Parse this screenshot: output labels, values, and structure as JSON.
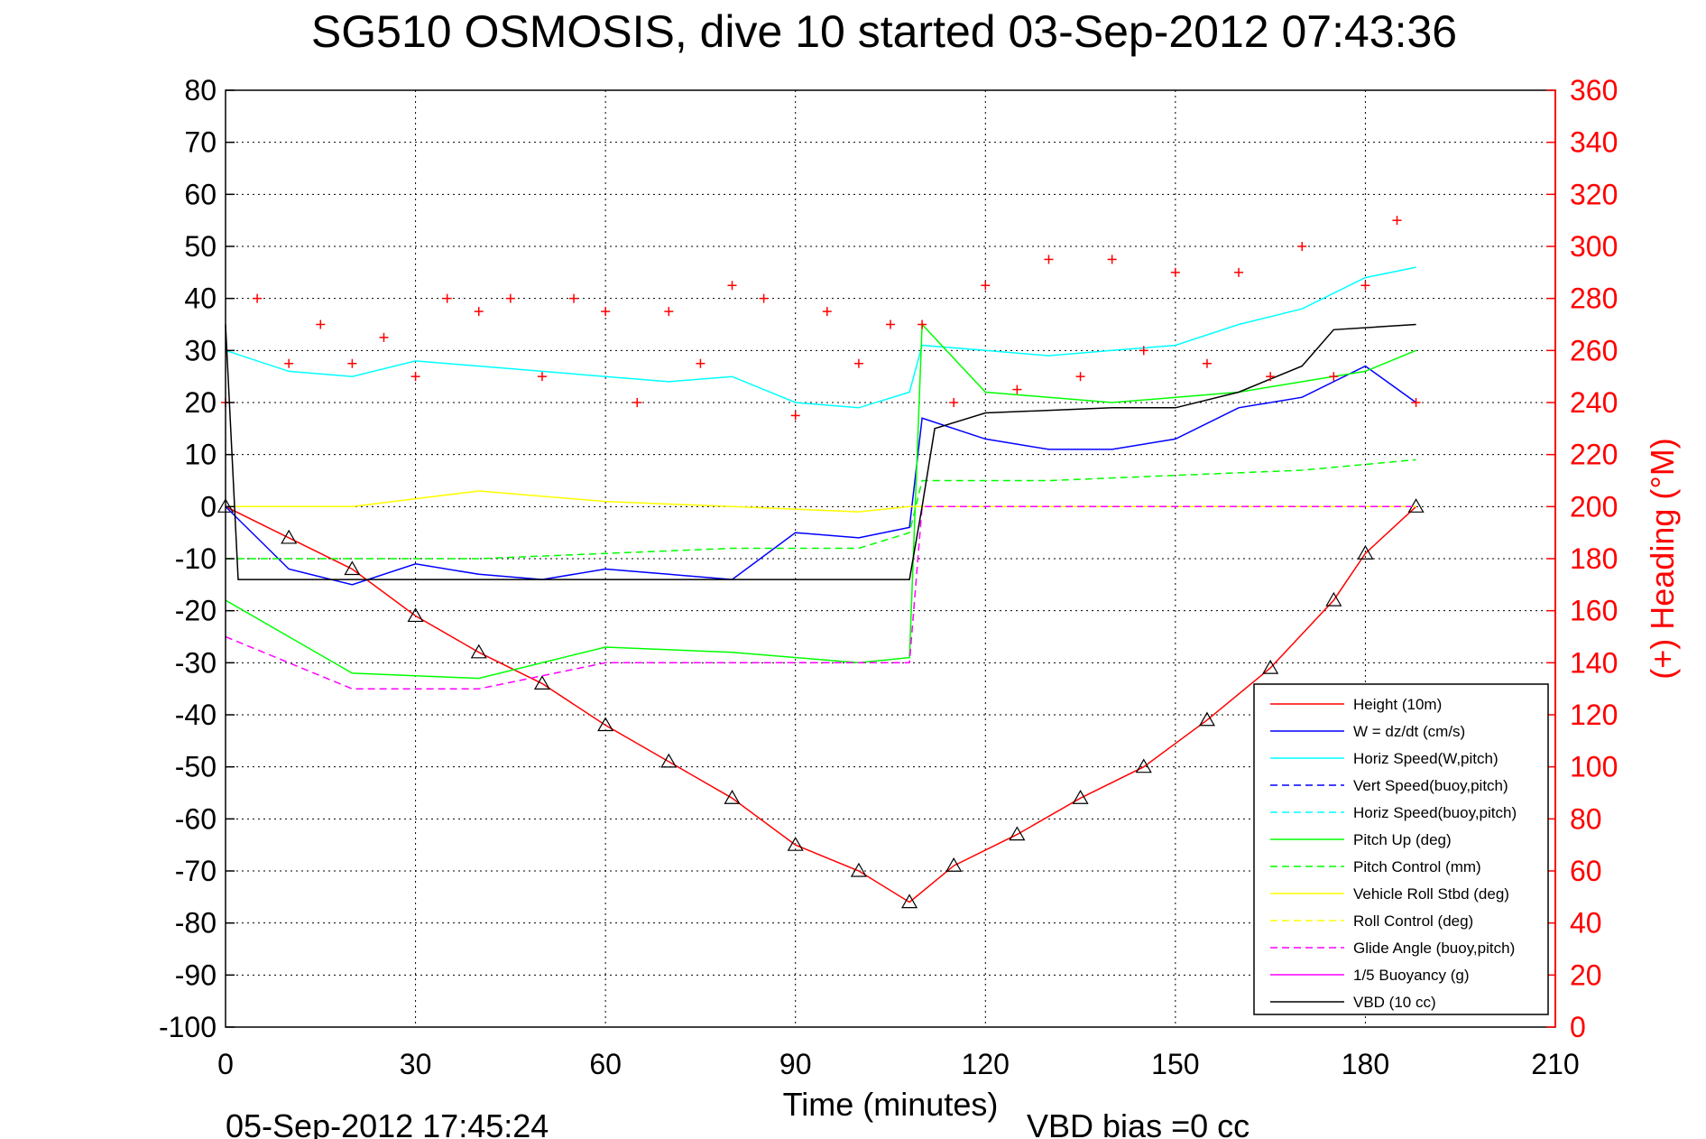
{
  "chart_data": {
    "type": "line",
    "title": "SG510 OSMOSIS, dive 10 started 03-Sep-2012 07:43:36",
    "xlabel": "Time (minutes)",
    "ylabel_right": "(+) Heading (°M)",
    "footer_left": "05-Sep-2012 17:45:24",
    "footer_right": "VBD bias =0 cc",
    "xlim": [
      0,
      210
    ],
    "ylim": [
      -100,
      80
    ],
    "ylim_right": [
      0,
      360
    ],
    "x_ticks": [
      "0",
      "30",
      "60",
      "90",
      "120",
      "150",
      "180",
      "210"
    ],
    "y_ticks": [
      "80",
      "70",
      "60",
      "50",
      "40",
      "30",
      "20",
      "10",
      "0",
      "-10",
      "-20",
      "-30",
      "-40",
      "-50",
      "-60",
      "-70",
      "-80",
      "-90",
      "-100"
    ],
    "y_ticks_right": [
      "360",
      "340",
      "320",
      "300",
      "280",
      "260",
      "240",
      "220",
      "200",
      "180",
      "160",
      "140",
      "120",
      "100",
      "80",
      "60",
      "40",
      "20",
      "0"
    ],
    "grid": true,
    "legend_position": "bottom-right",
    "legend": [
      {
        "label": "Height (10m)",
        "color": "#ff0000",
        "dash": "solid"
      },
      {
        "label": "W = dz/dt (cm/s)",
        "color": "#0000ff",
        "dash": "solid"
      },
      {
        "label": "Horiz Speed(W,pitch)",
        "color": "#00ffff",
        "dash": "solid"
      },
      {
        "label": "Vert Speed(buoy,pitch)",
        "color": "#0000ff",
        "dash": "dashed"
      },
      {
        "label": "Horiz Speed(buoy,pitch)",
        "color": "#00ffff",
        "dash": "dashed"
      },
      {
        "label": "Pitch Up (deg)",
        "color": "#00ff00",
        "dash": "solid"
      },
      {
        "label": "Pitch Control (mm)",
        "color": "#00ff00",
        "dash": "dashed"
      },
      {
        "label": "Vehicle Roll Stbd (deg)",
        "color": "#ffff00",
        "dash": "solid"
      },
      {
        "label": "Roll Control (deg)",
        "color": "#ffff00",
        "dash": "dashed"
      },
      {
        "label": "Glide Angle (buoy,pitch)",
        "color": "#ff00ff",
        "dash": "dashed"
      },
      {
        "label": "1/5 Buoyancy (g)",
        "color": "#ff00ff",
        "dash": "solid"
      },
      {
        "label": "VBD (10 cc)",
        "color": "#000000",
        "dash": "solid"
      }
    ],
    "series": [
      {
        "name": "Height (10m)",
        "x": [
          0,
          10,
          20,
          30,
          40,
          50,
          60,
          70,
          80,
          90,
          100,
          108,
          115,
          125,
          135,
          145,
          155,
          165,
          175,
          180,
          188
        ],
        "y": [
          0,
          -6,
          -12,
          -21,
          -28,
          -34,
          -42,
          -49,
          -56,
          -65,
          -70,
          -76,
          -69,
          -63,
          -56,
          -50,
          -41,
          -31,
          -18,
          -9,
          0
        ]
      },
      {
        "name": "W = dz/dt (cm/s)",
        "x": [
          0,
          10,
          20,
          30,
          40,
          50,
          60,
          70,
          80,
          90,
          100,
          108,
          110,
          120,
          130,
          140,
          150,
          160,
          170,
          180,
          188
        ],
        "y": [
          0,
          -12,
          -15,
          -11,
          -13,
          -14,
          -12,
          -13,
          -14,
          -5,
          -6,
          -4,
          17,
          13,
          11,
          11,
          13,
          19,
          21,
          27,
          20
        ]
      },
      {
        "name": "Horiz Speed(W,pitch)",
        "x": [
          0,
          10,
          20,
          30,
          40,
          50,
          60,
          70,
          80,
          90,
          100,
          108,
          110,
          120,
          130,
          140,
          150,
          160,
          170,
          180,
          188
        ],
        "y": [
          30,
          26,
          25,
          28,
          27,
          26,
          25,
          24,
          25,
          20,
          19,
          22,
          31,
          30,
          29,
          30,
          31,
          35,
          38,
          44,
          46
        ]
      },
      {
        "name": "Pitch Up (deg)",
        "x": [
          0,
          20,
          40,
          60,
          80,
          100,
          108,
          110,
          120,
          140,
          160,
          180,
          188
        ],
        "y": [
          -18,
          -32,
          -33,
          -27,
          -28,
          -30,
          -29,
          35,
          22,
          20,
          22,
          26,
          30
        ]
      },
      {
        "name": "Pitch Control (mm)",
        "x": [
          0,
          20,
          40,
          60,
          80,
          100,
          108,
          110,
          130,
          150,
          170,
          188
        ],
        "y": [
          -10,
          -10,
          -10,
          -9,
          -8,
          -8,
          -5,
          5,
          5,
          6,
          7,
          9
        ]
      },
      {
        "name": "Vehicle Roll Stbd (deg)",
        "x": [
          0,
          20,
          40,
          60,
          80,
          100,
          108,
          120,
          140,
          160,
          180,
          188
        ],
        "y": [
          0,
          0,
          3,
          1,
          0,
          -1,
          0,
          0,
          0,
          0,
          0,
          0
        ]
      },
      {
        "name": "Glide Angle (buoy,pitch)",
        "x": [
          0,
          20,
          40,
          60,
          80,
          100,
          108,
          110,
          188
        ],
        "y": [
          -25,
          -35,
          -35,
          -30,
          -30,
          -30,
          -30,
          0,
          0
        ]
      },
      {
        "name": "VBD (10 cc)",
        "x": [
          0,
          2,
          108,
          110,
          112,
          120,
          140,
          150,
          160,
          170,
          175,
          188
        ],
        "y": [
          35,
          -14,
          -14,
          0,
          15,
          18,
          19,
          19,
          22,
          27,
          34,
          35
        ]
      },
      {
        "name": "Heading",
        "axis": "right",
        "x": [
          0,
          5,
          10,
          15,
          20,
          25,
          30,
          35,
          40,
          45,
          50,
          55,
          60,
          65,
          70,
          75,
          80,
          85,
          90,
          95,
          100,
          105,
          110,
          115,
          120,
          125,
          130,
          135,
          140,
          145,
          150,
          155,
          160,
          165,
          170,
          175,
          180,
          185,
          188
        ],
        "y": [
          240,
          280,
          255,
          270,
          255,
          265,
          250,
          280,
          275,
          280,
          250,
          280,
          275,
          240,
          275,
          255,
          285,
          280,
          235,
          275,
          255,
          270,
          270,
          240,
          285,
          245,
          295,
          250,
          295,
          260,
          290,
          255,
          290,
          250,
          300,
          250,
          285,
          310,
          240
        ]
      }
    ]
  }
}
